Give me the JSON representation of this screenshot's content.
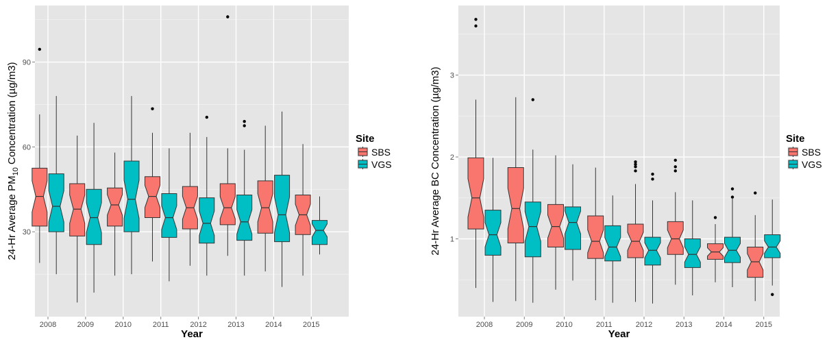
{
  "chart_data": [
    {
      "type": "boxplot",
      "notched": true,
      "xlabel": "Year",
      "ylabel_pre": "24-Hr Average PM",
      "ylabel_sub": "10",
      "ylabel_post": " Concentration (µg/m3)",
      "categories": [
        "2008",
        "2009",
        "2010",
        "2011",
        "2012",
        "2013",
        "2014",
        "2015"
      ],
      "ylim": [
        0,
        110
      ],
      "yticks": [
        30,
        60,
        90
      ],
      "grid": true,
      "legend": {
        "title": "Site",
        "position": "right"
      },
      "series": [
        {
          "name": "SBS",
          "color": "#F8766D",
          "boxes": [
            {
              "lo": 19,
              "q1": 32,
              "med": 42.5,
              "q3": 52.5,
              "hi": 71.5,
              "out": [
                94.5
              ]
            },
            {
              "lo": 5,
              "q1": 28.5,
              "med": 38,
              "q3": 47,
              "hi": 64,
              "out": []
            },
            {
              "lo": 14.5,
              "q1": 32,
              "med": 39.5,
              "q3": 45.5,
              "hi": 58,
              "out": []
            },
            {
              "lo": 19.5,
              "q1": 35,
              "med": 42.5,
              "q3": 49.5,
              "hi": 65,
              "out": [
                73.5
              ]
            },
            {
              "lo": 18,
              "q1": 31,
              "med": 38.5,
              "q3": 46,
              "hi": 65,
              "out": []
            },
            {
              "lo": 21.5,
              "q1": 32.5,
              "med": 38.5,
              "q3": 47,
              "hi": 59.5,
              "out": [
                106
              ]
            },
            {
              "lo": 16,
              "q1": 29.5,
              "med": 38.5,
              "q3": 48,
              "hi": 67.5,
              "out": []
            },
            {
              "lo": 14.5,
              "q1": 29,
              "med": 36,
              "q3": 43,
              "hi": 61,
              "out": []
            }
          ]
        },
        {
          "name": "VGS",
          "color": "#00BFC4",
          "boxes": [
            {
              "lo": 15,
              "q1": 30,
              "med": 39,
              "q3": 50.5,
              "hi": 78,
              "out": []
            },
            {
              "lo": 8.5,
              "q1": 25.5,
              "med": 35,
              "q3": 45,
              "hi": 68.5,
              "out": []
            },
            {
              "lo": 15,
              "q1": 30,
              "med": 41.5,
              "q3": 55,
              "hi": 78,
              "out": []
            },
            {
              "lo": 12.5,
              "q1": 28,
              "med": 35,
              "q3": 43.5,
              "hi": 59.5,
              "out": []
            },
            {
              "lo": 14.5,
              "q1": 26,
              "med": 33,
              "q3": 42,
              "hi": 63.5,
              "out": [
                70.5
              ]
            },
            {
              "lo": 14.5,
              "q1": 27,
              "med": 33.5,
              "q3": 43,
              "hi": 59,
              "out": [
                67.5,
                69
              ]
            },
            {
              "lo": 10.5,
              "q1": 26.5,
              "med": 36,
              "q3": 50,
              "hi": 72.5,
              "out": []
            },
            {
              "lo": 22,
              "q1": 25.5,
              "med": 30.5,
              "q3": 34,
              "hi": 42.5,
              "out": []
            }
          ]
        }
      ]
    },
    {
      "type": "boxplot",
      "notched": true,
      "xlabel": "Year",
      "ylabel_pre": "24-Hr Average BC Concentration (µg/m3)",
      "ylabel_sub": "",
      "ylabel_post": "",
      "categories": [
        "2008",
        "2009",
        "2010",
        "2011",
        "2012",
        "2013",
        "2014",
        "2015"
      ],
      "ylim": [
        0.05,
        3.85
      ],
      "yticks": [
        1,
        2,
        3
      ],
      "grid": true,
      "legend": {
        "title": "Site",
        "position": "right"
      },
      "series": [
        {
          "name": "SBS",
          "color": "#F8766D",
          "boxes": [
            {
              "lo": 0.4,
              "q1": 1.12,
              "med": 1.5,
              "q3": 1.99,
              "hi": 2.7,
              "out": [
                3.6,
                3.68
              ]
            },
            {
              "lo": 0.24,
              "q1": 0.95,
              "med": 1.37,
              "q3": 1.87,
              "hi": 2.73,
              "out": []
            },
            {
              "lo": 0.38,
              "q1": 0.9,
              "med": 1.15,
              "q3": 1.42,
              "hi": 2.02,
              "out": []
            },
            {
              "lo": 0.25,
              "q1": 0.76,
              "med": 0.97,
              "q3": 1.28,
              "hi": 1.87,
              "out": []
            },
            {
              "lo": 0.23,
              "q1": 0.77,
              "med": 0.97,
              "q3": 1.18,
              "hi": 1.67,
              "out": [
                1.83,
                1.88,
                1.91,
                1.94
              ]
            },
            {
              "lo": 0.44,
              "q1": 0.81,
              "med": 1.0,
              "q3": 1.21,
              "hi": 1.57,
              "out": [
                1.83,
                1.88,
                1.96
              ]
            },
            {
              "lo": 0.47,
              "q1": 0.75,
              "med": 0.84,
              "q3": 0.94,
              "hi": 1.18,
              "out": [
                1.26
              ]
            },
            {
              "lo": 0.24,
              "q1": 0.53,
              "med": 0.72,
              "q3": 0.9,
              "hi": 1.29,
              "out": [
                1.56
              ]
            }
          ]
        },
        {
          "name": "VGS",
          "color": "#00BFC4",
          "boxes": [
            {
              "lo": 0.23,
              "q1": 0.8,
              "med": 1.05,
              "q3": 1.35,
              "hi": 1.99,
              "out": []
            },
            {
              "lo": 0.22,
              "q1": 0.78,
              "med": 1.15,
              "q3": 1.45,
              "hi": 2.09,
              "out": [
                2.7
              ]
            },
            {
              "lo": 0.49,
              "q1": 0.87,
              "med": 1.2,
              "q3": 1.39,
              "hi": 1.91,
              "out": []
            },
            {
              "lo": 0.22,
              "q1": 0.73,
              "med": 0.9,
              "q3": 1.16,
              "hi": 1.53,
              "out": []
            },
            {
              "lo": 0.21,
              "q1": 0.68,
              "med": 0.86,
              "q3": 1.02,
              "hi": 1.47,
              "out": [
                1.73,
                1.79
              ]
            },
            {
              "lo": 0.31,
              "q1": 0.65,
              "med": 0.81,
              "q3": 1.0,
              "hi": 1.47,
              "out": []
            },
            {
              "lo": 0.41,
              "q1": 0.71,
              "med": 0.86,
              "q3": 1.02,
              "hi": 1.49,
              "out": [
                1.51,
                1.61
              ]
            },
            {
              "lo": 0.43,
              "q1": 0.77,
              "med": 0.9,
              "q3": 1.05,
              "hi": 1.48,
              "out": [
                0.32
              ]
            }
          ]
        }
      ]
    }
  ]
}
